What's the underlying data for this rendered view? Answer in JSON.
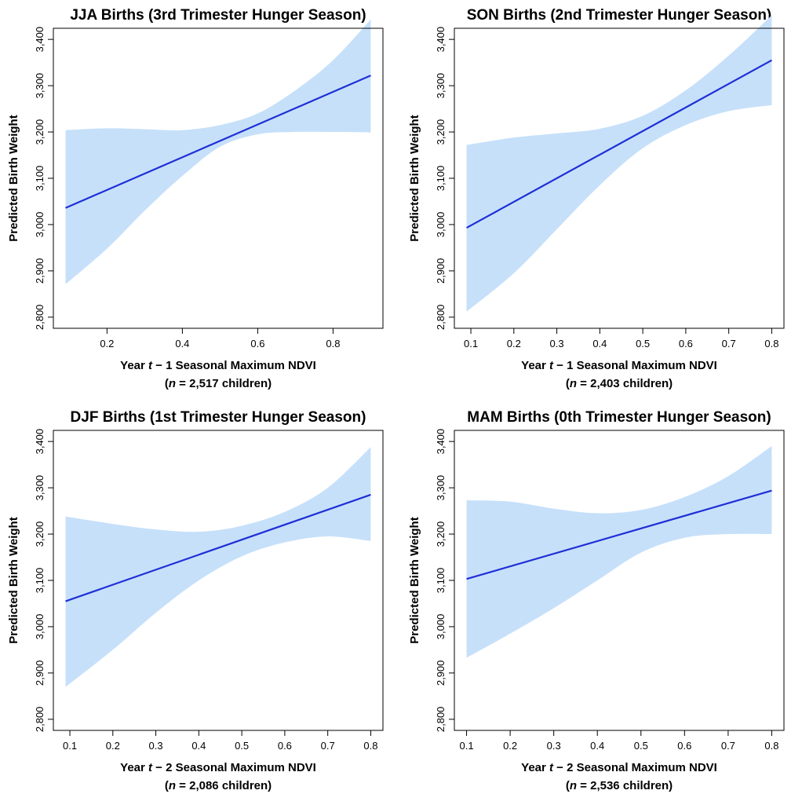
{
  "chart_data": [
    {
      "type": "line",
      "title": "JJA Births (3rd Trimester Hunger Season)",
      "ylabel": "Predicted Birth Weight",
      "xlabel_parts": [
        "Year ",
        "t",
        " − 1 Seasonal Maximum NDVI"
      ],
      "n_label_parts": [
        "(",
        "n",
        " = 2,517 children)"
      ],
      "xlim": [
        0.09,
        0.9
      ],
      "ylim": [
        2800,
        3400
      ],
      "x_ticks": [
        0.2,
        0.4,
        0.6,
        0.8
      ],
      "x_tick_labels": [
        "0.2",
        "0.4",
        "0.6",
        "0.8"
      ],
      "y_ticks": [
        2800,
        2900,
        3000,
        3100,
        3200,
        3300,
        3400
      ],
      "y_tick_labels": [
        "2,800",
        "2,900",
        "3,000",
        "3,100",
        "3,200",
        "3,300",
        "3,400"
      ],
      "line_color": "#1f2fd6",
      "band_color": "#c6e0fa",
      "fit": {
        "x": [
          0.09,
          0.9
        ],
        "y": [
          3036,
          3322
        ]
      },
      "band": {
        "x": [
          0.09,
          0.2,
          0.3,
          0.4,
          0.5,
          0.6,
          0.7,
          0.8,
          0.9
        ],
        "upper": [
          3204,
          3208,
          3206,
          3204,
          3215,
          3240,
          3290,
          3355,
          3443
        ],
        "lower": [
          2871,
          2948,
          3030,
          3105,
          3168,
          3195,
          3200,
          3200,
          3199
        ]
      }
    },
    {
      "type": "line",
      "title": "SON Births (2nd Trimester Hunger Season)",
      "ylabel": "Predicted Birth Weight",
      "xlabel_parts": [
        "Year ",
        "t",
        " − 1 Seasonal Maximum NDVI"
      ],
      "n_label_parts": [
        "(",
        "n",
        " = 2,403 children)"
      ],
      "xlim": [
        0.09,
        0.8
      ],
      "ylim": [
        2800,
        3400
      ],
      "x_ticks": [
        0.1,
        0.2,
        0.3,
        0.4,
        0.5,
        0.6,
        0.7,
        0.8
      ],
      "x_tick_labels": [
        "0.1",
        "0.2",
        "0.3",
        "0.4",
        "0.5",
        "0.6",
        "0.7",
        "0.8"
      ],
      "y_ticks": [
        2800,
        2900,
        3000,
        3100,
        3200,
        3300,
        3400
      ],
      "y_tick_labels": [
        "2,800",
        "2,900",
        "3,000",
        "3,100",
        "3,200",
        "3,300",
        "3,400"
      ],
      "line_color": "#1f2fd6",
      "band_color": "#c6e0fa",
      "fit": {
        "x": [
          0.09,
          0.8
        ],
        "y": [
          2993,
          3355
        ]
      },
      "band": {
        "x": [
          0.09,
          0.2,
          0.3,
          0.4,
          0.5,
          0.6,
          0.7,
          0.8
        ],
        "upper": [
          3172,
          3188,
          3197,
          3207,
          3235,
          3290,
          3365,
          3452
        ],
        "lower": [
          2812,
          2895,
          2990,
          3085,
          3165,
          3215,
          3245,
          3258
        ]
      }
    },
    {
      "type": "line",
      "title": "DJF Births (1st Trimester Hunger Season)",
      "ylabel": "Predicted Birth Weight",
      "xlabel_parts": [
        "Year ",
        "t",
        " − 2 Seasonal Maximum NDVI"
      ],
      "n_label_parts": [
        "(",
        "n",
        " = 2,086 children)"
      ],
      "xlim": [
        0.09,
        0.8
      ],
      "ylim": [
        2800,
        3400
      ],
      "x_ticks": [
        0.1,
        0.2,
        0.3,
        0.4,
        0.5,
        0.6,
        0.7,
        0.8
      ],
      "x_tick_labels": [
        "0.1",
        "0.2",
        "0.3",
        "0.4",
        "0.5",
        "0.6",
        "0.7",
        "0.8"
      ],
      "y_ticks": [
        2800,
        2900,
        3000,
        3100,
        3200,
        3300,
        3400
      ],
      "y_tick_labels": [
        "2,800",
        "2,900",
        "3,000",
        "3,100",
        "3,200",
        "3,300",
        "3,400"
      ],
      "line_color": "#1f2fd6",
      "band_color": "#c6e0fa",
      "fit": {
        "x": [
          0.09,
          0.8
        ],
        "y": [
          3055,
          3285
        ]
      },
      "band": {
        "x": [
          0.09,
          0.2,
          0.3,
          0.4,
          0.5,
          0.6,
          0.7,
          0.8
        ],
        "upper": [
          3238,
          3222,
          3210,
          3205,
          3218,
          3248,
          3300,
          3388
        ],
        "lower": [
          2870,
          2950,
          3030,
          3100,
          3152,
          3182,
          3195,
          3185
        ]
      }
    },
    {
      "type": "line",
      "title": "MAM Births (0th Trimester Hunger Season)",
      "ylabel": "Predicted Birth Weight",
      "xlabel_parts": [
        "Year ",
        "t",
        " − 2 Seasonal Maximum NDVI"
      ],
      "n_label_parts": [
        "(",
        "n",
        " = 2,536 children)"
      ],
      "xlim": [
        0.1,
        0.8
      ],
      "ylim": [
        2800,
        3400
      ],
      "x_ticks": [
        0.1,
        0.2,
        0.3,
        0.4,
        0.5,
        0.6,
        0.7,
        0.8
      ],
      "x_tick_labels": [
        "0.1",
        "0.2",
        "0.3",
        "0.4",
        "0.5",
        "0.6",
        "0.7",
        "0.8"
      ],
      "y_ticks": [
        2800,
        2900,
        3000,
        3100,
        3200,
        3300,
        3400
      ],
      "y_tick_labels": [
        "2,800",
        "2,900",
        "3,000",
        "3,100",
        "3,200",
        "3,300",
        "3,400"
      ],
      "line_color": "#1f2fd6",
      "band_color": "#c6e0fa",
      "fit": {
        "x": [
          0.1,
          0.8
        ],
        "y": [
          3103,
          3294
        ]
      },
      "band": {
        "x": [
          0.1,
          0.2,
          0.3,
          0.4,
          0.5,
          0.6,
          0.7,
          0.8
        ],
        "upper": [
          3273,
          3270,
          3255,
          3245,
          3252,
          3280,
          3325,
          3390
        ],
        "lower": [
          2933,
          2985,
          3040,
          3100,
          3160,
          3192,
          3200,
          3200
        ]
      }
    }
  ]
}
